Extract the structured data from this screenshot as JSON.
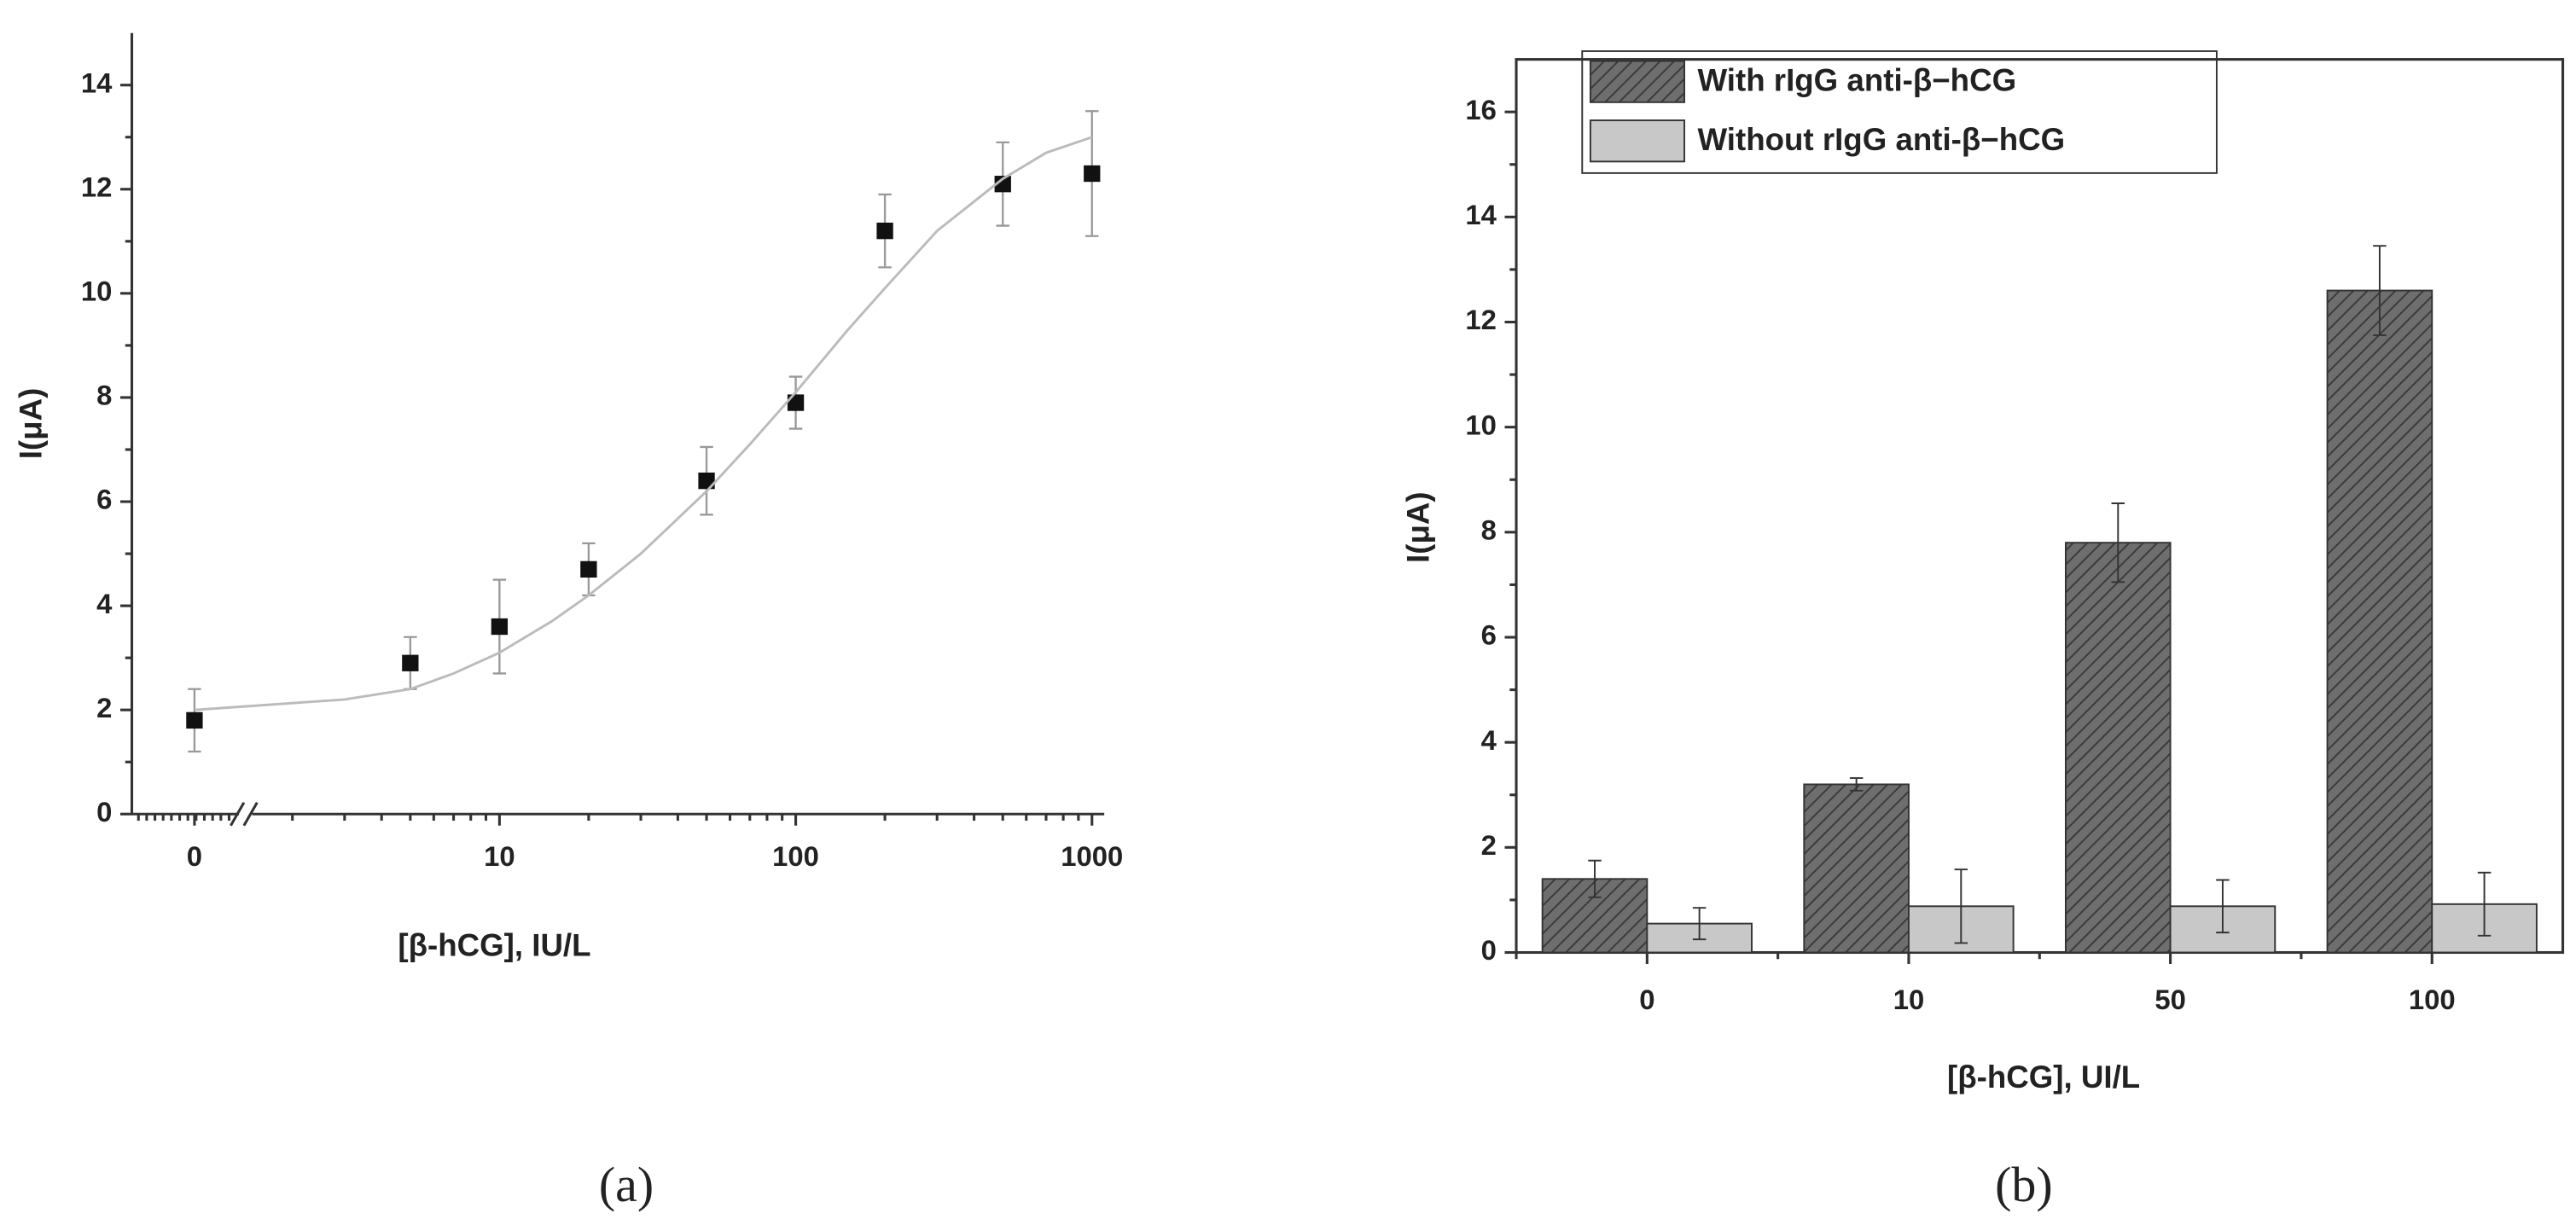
{
  "chart_data": [
    {
      "type": "scatter",
      "panel": "(a)",
      "x_label": "[β-hCG], IU/L",
      "y_label": "I(μA)",
      "x_log": true,
      "x_break": true,
      "x": [
        0,
        5,
        10,
        20,
        50,
        100,
        200,
        500,
        1000
      ],
      "series": [
        {
          "kind": "points",
          "color": "#111111",
          "values": [
            1.8,
            2.9,
            3.6,
            4.7,
            6.4,
            7.9,
            11.2,
            12.1,
            12.3
          ],
          "errors": [
            0.6,
            0.5,
            0.9,
            0.5,
            0.65,
            0.5,
            0.7,
            0.8,
            1.2
          ]
        },
        {
          "kind": "fit",
          "color": "#bbbbbb",
          "x": [
            0,
            3,
            5,
            7,
            10,
            15,
            20,
            30,
            50,
            70,
            100,
            150,
            200,
            300,
            500,
            700,
            1000
          ],
          "values": [
            2.0,
            2.2,
            2.4,
            2.7,
            3.1,
            3.7,
            4.2,
            5.0,
            6.2,
            7.1,
            8.1,
            9.3,
            10.1,
            11.2,
            12.2,
            12.7,
            13.0
          ]
        }
      ],
      "xlim": [
        1.6,
        1100
      ],
      "xticks": [
        0,
        10,
        100,
        1000
      ],
      "ylim": [
        0,
        15
      ],
      "yticks": [
        0,
        2,
        4,
        6,
        8,
        10,
        12,
        14
      ]
    },
    {
      "type": "bar",
      "panel": "(b)",
      "x_label": "[β-hCG], UI/L",
      "y_label": "I(μA)",
      "categories": [
        "0",
        "10",
        "50",
        "100"
      ],
      "series": [
        {
          "name": "With rIgG anti-β−hCG",
          "color": "#6e6e6e",
          "hatch": true,
          "values": [
            1.4,
            3.2,
            7.8,
            12.6
          ],
          "errors": [
            0.35,
            0.12,
            0.75,
            0.85
          ]
        },
        {
          "name": "Without rIgG anti-β−hCG",
          "color": "#c8c8c8",
          "hatch": false,
          "values": [
            0.55,
            0.88,
            0.88,
            0.92
          ],
          "errors": [
            0.3,
            0.7,
            0.5,
            0.6
          ]
        }
      ],
      "ylim": [
        0,
        17
      ],
      "yticks": [
        0,
        2,
        4,
        6,
        8,
        10,
        12,
        14,
        16
      ],
      "legend": "top-left"
    }
  ]
}
